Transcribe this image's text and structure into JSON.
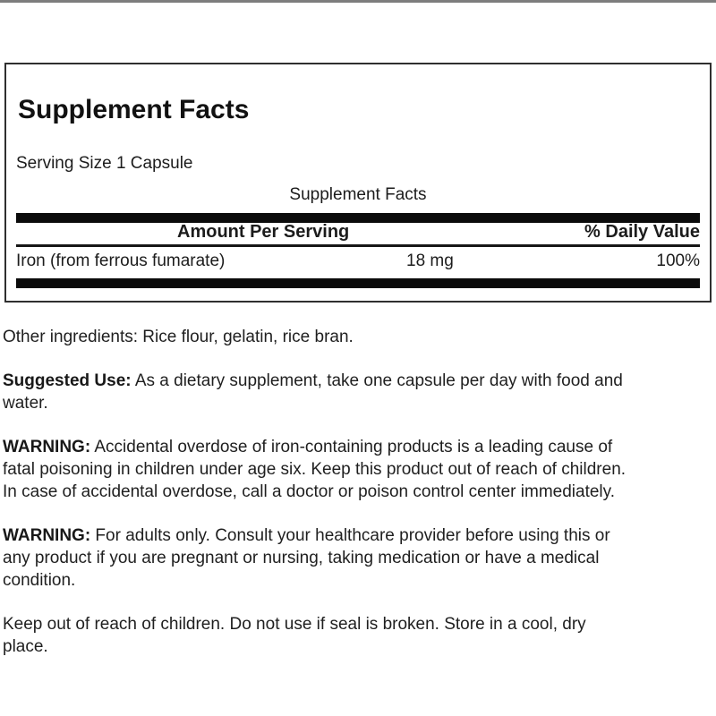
{
  "panel": {
    "title": "Supplement Facts",
    "serving_size": "Serving Size 1 Capsule",
    "table_title": "Supplement Facts",
    "columns": {
      "amount": "Amount Per Serving",
      "daily_value": "% Daily Value"
    },
    "rows": [
      {
        "name": "Iron (from ferrous fumarate)",
        "amount": "18 mg",
        "daily_value": "100%"
      }
    ]
  },
  "body": {
    "other_ingredients": {
      "line1": "Other ingredients: Rice flour, gelatin, rice bran."
    },
    "suggested_use": {
      "label": "Suggested Use:",
      "line1_rest": " As a dietary supplement, take one capsule per day with food and",
      "line2": "water."
    },
    "warning_overdose": {
      "label": "WARNING:",
      "line1_rest": " Accidental overdose of iron-containing products is a leading cause of",
      "line2": "fatal poisoning in children under age six. Keep this product out of reach of children.",
      "line3": "In case of accidental overdose, call a doctor or poison control center immediately."
    },
    "warning_adults": {
      "label": "WARNING:",
      "line1_rest": " For adults only. Consult your healthcare provider before using this or",
      "line2": "any product if you are pregnant or nursing, taking medication or have a medical",
      "line3": "condition."
    },
    "storage": {
      "line1": "Keep out of reach of children. Do not use if seal is broken. Store in a cool, dry",
      "line2": "place."
    }
  },
  "colors": {
    "rule_black": "#0b0b0b",
    "panel_border": "#2f2f2f",
    "text": "#1c1c1c",
    "photo_edge_gray": "#7d7d7d",
    "background": "#ffffff"
  }
}
